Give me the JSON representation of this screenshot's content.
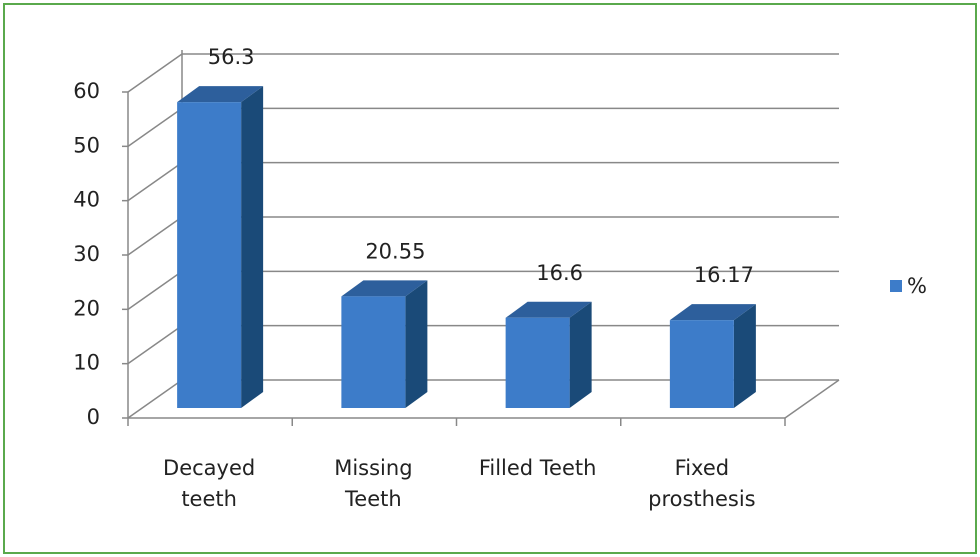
{
  "chart_data": {
    "type": "bar3d",
    "categories": [
      "Decayed\nteeth",
      "Missing\nTeeth",
      "Filled Teeth",
      "Fixed\nprosthesis"
    ],
    "series": [
      {
        "name": "%",
        "color": "#3d7cc9",
        "values": [
          56.3,
          20.55,
          16.6,
          16.17
        ]
      }
    ],
    "ylim": [
      0,
      60
    ],
    "yticks": [
      0,
      10,
      20,
      30,
      40,
      50,
      60
    ],
    "grid": true,
    "legend": "right"
  }
}
